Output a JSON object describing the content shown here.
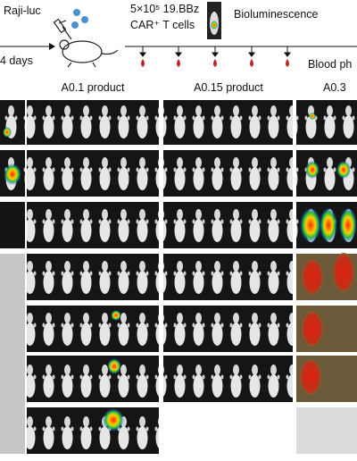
{
  "header": {
    "raji": "Raji-luc",
    "dose": "5×10⁵ 19.BBz",
    "cells": "CAR⁺ T cells",
    "imaging": "Bioluminescence",
    "days": "4 days",
    "blood": "Blood ph"
  },
  "columns": [
    "A0.1 product",
    "A0.15 product",
    "A0.3"
  ]
}
